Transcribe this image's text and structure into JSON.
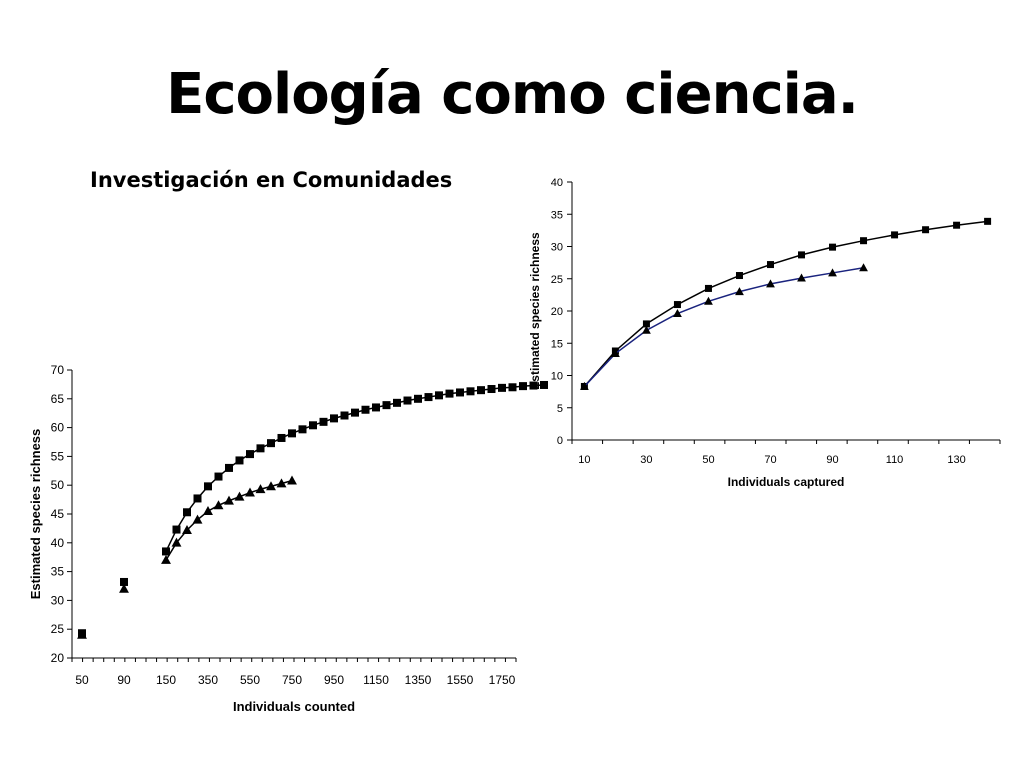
{
  "slide": {
    "title": "Ecología como ciencia.",
    "subtitle": "Investigación en Comunidades"
  },
  "chart_data": [
    {
      "type": "line",
      "xlabel": "Individuals counted",
      "ylabel": "Estimated species richness",
      "ylim": [
        20,
        70
      ],
      "yticks": [
        20,
        25,
        30,
        35,
        40,
        45,
        50,
        55,
        60,
        65,
        70
      ],
      "xtick_labels": [
        "50",
        "90",
        "150",
        "350",
        "550",
        "750",
        "950",
        "1150",
        "1350",
        "1550",
        "1750"
      ],
      "grid": false,
      "legend": "none",
      "series": [
        {
          "marker": "square",
          "color": "#000000",
          "x": [
            50,
            90,
            150,
            175,
            200,
            225,
            250,
            275,
            300,
            325,
            350,
            375,
            400,
            425,
            450,
            475,
            500,
            525,
            550,
            575,
            600,
            625,
            650,
            675,
            700,
            725,
            750,
            775,
            800,
            825,
            850,
            875,
            900,
            925,
            950,
            975,
            1000,
            1025,
            1050
          ],
          "y": [
            24.3,
            33.2,
            38.5,
            42.3,
            45.3,
            47.7,
            49.8,
            51.5,
            53.0,
            54.3,
            55.4,
            56.4,
            57.3,
            58.2,
            59.0,
            59.7,
            60.4,
            61.0,
            61.6,
            62.1,
            62.6,
            63.1,
            63.5,
            63.9,
            64.3,
            64.7,
            65.0,
            65.3,
            65.6,
            65.9,
            66.1,
            66.3,
            66.5,
            66.7,
            66.9,
            67.0,
            67.2,
            67.3,
            67.4
          ]
        },
        {
          "marker": "triangle",
          "color": "#000000",
          "x": [
            50,
            90,
            150,
            175,
            200,
            225,
            250,
            275,
            300,
            325,
            350,
            375,
            400,
            425,
            450
          ],
          "y": [
            24.0,
            32.0,
            37.0,
            40.0,
            42.2,
            44.0,
            45.5,
            46.5,
            47.3,
            48.0,
            48.7,
            49.3,
            49.8,
            50.3,
            50.8
          ]
        }
      ]
    },
    {
      "type": "line",
      "xlabel": "Individuals captured",
      "ylabel": "Estimated species richness",
      "ylim": [
        0,
        40
      ],
      "yticks": [
        0,
        5,
        10,
        15,
        20,
        25,
        30,
        35,
        40
      ],
      "xlim": [
        6,
        144
      ],
      "xticks": [
        10,
        30,
        50,
        70,
        90,
        110,
        130
      ],
      "grid": false,
      "legend": "none",
      "series": [
        {
          "marker": "square",
          "color": "#000000",
          "x": [
            10,
            20,
            30,
            40,
            50,
            60,
            70,
            80,
            90,
            100,
            110,
            120,
            130,
            140
          ],
          "y": [
            8.3,
            13.8,
            18.0,
            21.0,
            23.5,
            25.5,
            27.2,
            28.7,
            29.9,
            30.9,
            31.8,
            32.6,
            33.3,
            33.9
          ]
        },
        {
          "marker": "triangle",
          "color": "#1a237e",
          "x": [
            10,
            20,
            30,
            40,
            50,
            60,
            70,
            80,
            90,
            100
          ],
          "y": [
            8.3,
            13.4,
            17.0,
            19.6,
            21.5,
            23.0,
            24.2,
            25.1,
            25.9,
            26.7
          ]
        }
      ]
    }
  ]
}
